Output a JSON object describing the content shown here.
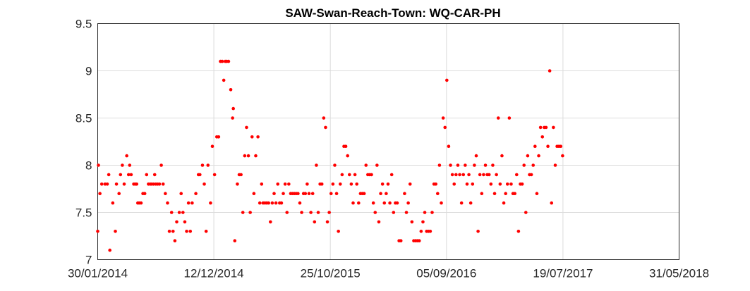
{
  "chart_data": {
    "type": "scatter",
    "title": "SAW-Swan-Reach-Town: WQ-CAR-PH",
    "xlabel": "",
    "ylabel": "",
    "x_range": [
      "30/01/2014",
      "31/05/2018"
    ],
    "ylim": [
      7,
      9.5
    ],
    "y_ticks": [
      "7",
      "7.5",
      "8",
      "8.5",
      "9",
      "9.5"
    ],
    "x_ticks": [
      "30/01/2014",
      "12/12/2014",
      "25/10/2015",
      "05/09/2016",
      "19/07/2017",
      "31/05/2018"
    ],
    "grid": true,
    "legend": "none",
    "marker_color": "#ff0000",
    "points": [
      [
        "30/01/2014",
        7.3
      ],
      [
        "01/02/2014",
        8.0
      ],
      [
        "05/02/2014",
        7.7
      ],
      [
        "10/02/2014",
        7.8
      ],
      [
        "19/02/2014",
        7.8
      ],
      [
        "25/02/2014",
        7.8
      ],
      [
        "01/03/2014",
        7.9
      ],
      [
        "04/03/2014",
        7.1
      ],
      [
        "12/03/2014",
        7.6
      ],
      [
        "19/03/2014",
        7.3
      ],
      [
        "22/03/2014",
        7.8
      ],
      [
        "29/03/2014",
        7.7
      ],
      [
        "02/04/2014",
        7.9
      ],
      [
        "07/04/2014",
        8.0
      ],
      [
        "12/04/2014",
        7.8
      ],
      [
        "19/04/2014",
        8.1
      ],
      [
        "24/04/2014",
        7.9
      ],
      [
        "27/04/2014",
        8.0
      ],
      [
        "01/05/2014",
        7.9
      ],
      [
        "08/05/2014",
        7.8
      ],
      [
        "12/05/2014",
        7.8
      ],
      [
        "16/05/2014",
        7.8
      ],
      [
        "19/05/2014",
        7.6
      ],
      [
        "23/05/2014",
        7.6
      ],
      [
        "28/05/2014",
        7.6
      ],
      [
        "02/06/2014",
        7.7
      ],
      [
        "07/06/2014",
        7.7
      ],
      [
        "12/06/2014",
        7.9
      ],
      [
        "17/06/2014",
        7.8
      ],
      [
        "22/06/2014",
        7.8
      ],
      [
        "26/06/2014",
        7.8
      ],
      [
        "01/07/2014",
        7.8
      ],
      [
        "04/07/2014",
        7.9
      ],
      [
        "07/07/2014",
        7.8
      ],
      [
        "12/07/2014",
        7.8
      ],
      [
        "17/07/2014",
        7.8
      ],
      [
        "22/07/2014",
        8.0
      ],
      [
        "27/07/2014",
        7.8
      ],
      [
        "02/08/2014",
        7.7
      ],
      [
        "08/08/2014",
        7.6
      ],
      [
        "13/08/2014",
        7.3
      ],
      [
        "19/08/2014",
        7.5
      ],
      [
        "23/08/2014",
        7.3
      ],
      [
        "28/08/2014",
        7.2
      ],
      [
        "02/09/2014",
        7.4
      ],
      [
        "09/09/2014",
        7.5
      ],
      [
        "14/09/2014",
        7.7
      ],
      [
        "19/09/2014",
        7.5
      ],
      [
        "24/09/2014",
        7.4
      ],
      [
        "29/09/2014",
        7.3
      ],
      [
        "04/10/2014",
        7.6
      ],
      [
        "09/10/2014",
        7.3
      ],
      [
        "14/10/2014",
        7.6
      ],
      [
        "24/10/2014",
        7.7
      ],
      [
        "31/10/2014",
        7.9
      ],
      [
        "04/11/2014",
        7.9
      ],
      [
        "11/11/2014",
        8.0
      ],
      [
        "16/11/2014",
        7.8
      ],
      [
        "21/11/2014",
        7.3
      ],
      [
        "26/11/2014",
        8.0
      ],
      [
        "03/12/2014",
        7.6
      ],
      [
        "08/12/2014",
        8.2
      ],
      [
        "14/12/2014",
        7.9
      ],
      [
        "20/12/2014",
        8.3
      ],
      [
        "25/12/2014",
        8.3
      ],
      [
        "30/12/2014",
        9.1
      ],
      [
        "04/01/2015",
        9.1
      ],
      [
        "08/01/2015",
        8.9
      ],
      [
        "12/01/2015",
        9.1
      ],
      [
        "16/01/2015",
        9.1
      ],
      [
        "21/01/2015",
        9.1
      ],
      [
        "27/01/2015",
        8.8
      ],
      [
        "01/02/2015",
        8.5
      ],
      [
        "03/02/2015",
        8.6
      ],
      [
        "07/02/2015",
        7.2
      ],
      [
        "14/02/2015",
        7.8
      ],
      [
        "19/02/2015",
        7.9
      ],
      [
        "24/02/2015",
        7.9
      ],
      [
        "01/03/2015",
        7.5
      ],
      [
        "06/03/2015",
        8.1
      ],
      [
        "11/03/2015",
        8.4
      ],
      [
        "16/03/2015",
        8.1
      ],
      [
        "21/03/2015",
        7.5
      ],
      [
        "26/03/2015",
        8.3
      ],
      [
        "31/03/2015",
        7.7
      ],
      [
        "05/04/2015",
        8.1
      ],
      [
        "11/04/2015",
        8.3
      ],
      [
        "16/04/2015",
        7.6
      ],
      [
        "21/04/2015",
        7.8
      ],
      [
        "25/04/2015",
        7.6
      ],
      [
        "30/04/2015",
        7.6
      ],
      [
        "05/05/2015",
        7.6
      ],
      [
        "10/05/2015",
        7.6
      ],
      [
        "15/05/2015",
        7.4
      ],
      [
        "20/05/2015",
        7.6
      ],
      [
        "25/05/2015",
        7.7
      ],
      [
        "30/05/2015",
        7.6
      ],
      [
        "04/06/2015",
        7.8
      ],
      [
        "09/06/2015",
        7.6
      ],
      [
        "14/06/2015",
        7.6
      ],
      [
        "19/06/2015",
        7.7
      ],
      [
        "24/06/2015",
        7.8
      ],
      [
        "29/06/2015",
        7.5
      ],
      [
        "04/07/2015",
        7.8
      ],
      [
        "09/07/2015",
        7.7
      ],
      [
        "14/07/2015",
        7.7
      ],
      [
        "19/07/2015",
        7.7
      ],
      [
        "24/07/2015",
        7.7
      ],
      [
        "29/07/2015",
        7.7
      ],
      [
        "03/08/2015",
        7.6
      ],
      [
        "08/08/2015",
        7.5
      ],
      [
        "13/08/2015",
        7.7
      ],
      [
        "18/08/2015",
        7.7
      ],
      [
        "23/08/2015",
        7.8
      ],
      [
        "28/08/2015",
        7.7
      ],
      [
        "02/09/2015",
        7.5
      ],
      [
        "07/09/2015",
        7.7
      ],
      [
        "12/09/2015",
        7.4
      ],
      [
        "17/09/2015",
        8.0
      ],
      [
        "22/09/2015",
        7.5
      ],
      [
        "27/09/2015",
        7.8
      ],
      [
        "02/10/2015",
        7.8
      ],
      [
        "07/10/2015",
        8.5
      ],
      [
        "12/10/2015",
        8.4
      ],
      [
        "17/10/2015",
        7.4
      ],
      [
        "22/10/2015",
        7.5
      ],
      [
        "27/10/2015",
        7.7
      ],
      [
        "01/11/2015",
        7.8
      ],
      [
        "06/11/2015",
        8.0
      ],
      [
        "11/11/2015",
        7.7
      ],
      [
        "16/11/2015",
        7.3
      ],
      [
        "21/11/2015",
        7.8
      ],
      [
        "26/11/2015",
        7.9
      ],
      [
        "01/12/2015",
        8.2
      ],
      [
        "06/12/2015",
        8.2
      ],
      [
        "11/12/2015",
        8.1
      ],
      [
        "16/12/2015",
        7.9
      ],
      [
        "21/12/2015",
        7.8
      ],
      [
        "26/12/2015",
        7.6
      ],
      [
        "31/12/2015",
        7.9
      ],
      [
        "05/01/2016",
        7.8
      ],
      [
        "10/01/2016",
        7.6
      ],
      [
        "15/01/2016",
        7.7
      ],
      [
        "20/01/2016",
        7.7
      ],
      [
        "25/01/2016",
        7.7
      ],
      [
        "30/01/2016",
        8.0
      ],
      [
        "04/02/2016",
        7.9
      ],
      [
        "09/02/2016",
        7.9
      ],
      [
        "14/02/2016",
        7.9
      ],
      [
        "19/02/2016",
        7.6
      ],
      [
        "24/02/2016",
        7.5
      ],
      [
        "29/02/2016",
        8.0
      ],
      [
        "05/03/2016",
        7.4
      ],
      [
        "10/03/2016",
        7.7
      ],
      [
        "15/03/2016",
        7.8
      ],
      [
        "20/03/2016",
        7.6
      ],
      [
        "25/03/2016",
        7.7
      ],
      [
        "30/03/2016",
        7.8
      ],
      [
        "04/04/2016",
        7.6
      ],
      [
        "09/04/2016",
        7.9
      ],
      [
        "14/04/2016",
        7.5
      ],
      [
        "19/04/2016",
        7.6
      ],
      [
        "24/04/2016",
        7.6
      ],
      [
        "29/04/2016",
        7.2
      ],
      [
        "04/05/2016",
        7.2
      ],
      [
        "14/05/2016",
        7.7
      ],
      [
        "19/05/2016",
        7.5
      ],
      [
        "24/05/2016",
        7.6
      ],
      [
        "29/05/2016",
        7.8
      ],
      [
        "03/06/2016",
        7.4
      ],
      [
        "08/06/2016",
        7.2
      ],
      [
        "13/06/2016",
        7.2
      ],
      [
        "18/06/2016",
        7.2
      ],
      [
        "23/06/2016",
        7.2
      ],
      [
        "28/06/2016",
        7.3
      ],
      [
        "03/07/2016",
        7.4
      ],
      [
        "08/07/2016",
        7.5
      ],
      [
        "13/07/2016",
        7.3
      ],
      [
        "18/07/2016",
        7.3
      ],
      [
        "23/07/2016",
        7.3
      ],
      [
        "28/07/2016",
        7.5
      ],
      [
        "02/08/2016",
        7.8
      ],
      [
        "07/08/2016",
        7.8
      ],
      [
        "12/08/2016",
        7.7
      ],
      [
        "17/08/2016",
        8.0
      ],
      [
        "22/08/2016",
        7.6
      ],
      [
        "27/08/2016",
        8.5
      ],
      [
        "01/09/2016",
        8.4
      ],
      [
        "06/09/2016",
        8.9
      ],
      [
        "11/09/2016",
        8.2
      ],
      [
        "16/09/2016",
        8.0
      ],
      [
        "21/09/2016",
        7.9
      ],
      [
        "26/09/2016",
        7.8
      ],
      [
        "01/10/2016",
        7.9
      ],
      [
        "06/10/2016",
        8.0
      ],
      [
        "11/10/2016",
        7.9
      ],
      [
        "16/10/2016",
        7.6
      ],
      [
        "21/10/2016",
        7.9
      ],
      [
        "26/10/2016",
        8.0
      ],
      [
        "31/10/2016",
        7.8
      ],
      [
        "05/11/2016",
        7.9
      ],
      [
        "10/11/2016",
        7.6
      ],
      [
        "15/11/2016",
        7.8
      ],
      [
        "20/11/2016",
        8.0
      ],
      [
        "25/11/2016",
        8.1
      ],
      [
        "30/11/2016",
        7.3
      ],
      [
        "05/12/2016",
        7.9
      ],
      [
        "10/12/2016",
        7.7
      ],
      [
        "15/12/2016",
        7.9
      ],
      [
        "20/12/2016",
        8.0
      ],
      [
        "25/12/2016",
        7.9
      ],
      [
        "30/12/2016",
        7.9
      ],
      [
        "04/01/2017",
        7.8
      ],
      [
        "09/01/2017",
        8.0
      ],
      [
        "14/01/2017",
        7.7
      ],
      [
        "19/01/2017",
        7.9
      ],
      [
        "24/01/2017",
        8.5
      ],
      [
        "29/01/2017",
        7.8
      ],
      [
        "03/02/2017",
        8.1
      ],
      [
        "08/02/2017",
        7.6
      ],
      [
        "13/02/2017",
        7.7
      ],
      [
        "18/02/2017",
        7.8
      ],
      [
        "23/02/2017",
        8.5
      ],
      [
        "28/02/2017",
        7.8
      ],
      [
        "05/03/2017",
        7.7
      ],
      [
        "10/03/2017",
        7.7
      ],
      [
        "15/03/2017",
        7.9
      ],
      [
        "20/03/2017",
        7.3
      ],
      [
        "25/03/2017",
        7.8
      ],
      [
        "30/03/2017",
        7.8
      ],
      [
        "04/04/2017",
        8.0
      ],
      [
        "09/04/2017",
        7.5
      ],
      [
        "14/04/2017",
        8.1
      ],
      [
        "19/04/2017",
        7.9
      ],
      [
        "24/04/2017",
        7.9
      ],
      [
        "29/04/2017",
        8.0
      ],
      [
        "04/05/2017",
        8.2
      ],
      [
        "09/05/2017",
        7.7
      ],
      [
        "14/05/2017",
        8.1
      ],
      [
        "19/05/2017",
        8.4
      ],
      [
        "24/05/2017",
        8.3
      ],
      [
        "29/05/2017",
        8.4
      ],
      [
        "03/06/2017",
        8.4
      ],
      [
        "08/06/2017",
        8.2
      ],
      [
        "13/06/2017",
        9.0
      ],
      [
        "18/06/2017",
        7.6
      ],
      [
        "23/06/2017",
        8.4
      ],
      [
        "28/06/2017",
        8.0
      ],
      [
        "03/07/2017",
        8.2
      ],
      [
        "08/07/2017",
        8.2
      ],
      [
        "13/07/2017",
        8.2
      ],
      [
        "18/07/2017",
        8.1
      ]
    ]
  }
}
